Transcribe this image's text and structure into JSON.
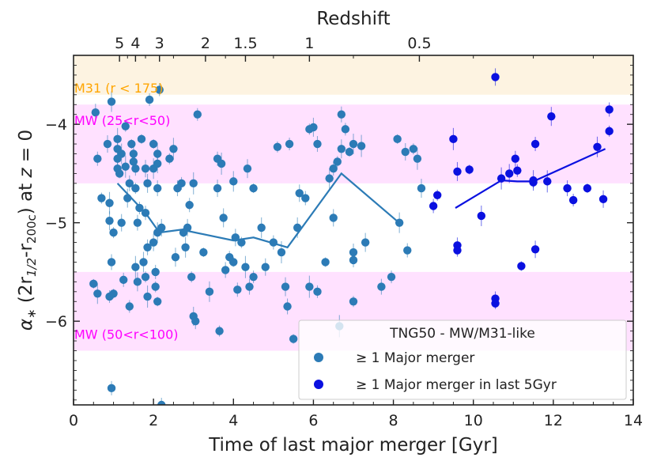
{
  "chart_data": {
    "type": "scatter",
    "xlabel": "Time of last major merger [Gyr]",
    "ylabel_parts": [
      "α",
      "∗",
      " (2r",
      "1/2",
      "-r",
      "200c",
      ") at ",
      "z",
      " = 0"
    ],
    "top_axis_label": "Redshift",
    "xlim": [
      0,
      14
    ],
    "ylim": [
      -6.85,
      -3.3
    ],
    "x_ticks": [
      0,
      2,
      4,
      6,
      8,
      10,
      12,
      14
    ],
    "x_tick_labels": [
      "0",
      "2",
      "4",
      "6",
      "8",
      "10",
      "12",
      "14"
    ],
    "y_ticks": [
      -4,
      -5,
      -6
    ],
    "y_tick_labels": [
      "−4",
      "−5",
      "−6"
    ],
    "top_ticks": [
      {
        "time": 1.15,
        "label": "5"
      },
      {
        "time": 1.55,
        "label": "4"
      },
      {
        "time": 2.15,
        "label": "3"
      },
      {
        "time": 3.3,
        "label": "2"
      },
      {
        "time": 4.3,
        "label": "1.5"
      },
      {
        "time": 5.9,
        "label": "1"
      },
      {
        "time": 8.65,
        "label": "0.5"
      }
    ],
    "top_minor_ticks": [
      1.35,
      1.8,
      2.5,
      3.8,
      5.0,
      7.0,
      10.0,
      11.5,
      13.0
    ],
    "bands": [
      {
        "name": "M31",
        "label": "M31 (r < 175)",
        "y_low": -3.7,
        "y_high": -3.3,
        "fill": "#fdf3e1",
        "label_color": "#ffa500",
        "label_y": -3.63
      },
      {
        "name": "MW_inner",
        "label": "MW (25<r<50)",
        "y_low": -4.6,
        "y_high": -3.8,
        "fill": "#ffe1ff",
        "label_color": "#ff00ff",
        "label_y": -3.96
      },
      {
        "name": "MW_outer",
        "label": "MW (50<r<100)",
        "y_low": -6.3,
        "y_high": -5.5,
        "fill": "#ffe1ff",
        "label_color": "#ff00ff",
        "label_y": -6.13
      }
    ],
    "legend": {
      "title": "TNG50 - MW/M31-like",
      "entries": [
        "≥ 1 Major merger",
        "≥ 1 Major merger in last 5Gyr"
      ]
    },
    "series": [
      {
        "name": "≥ 1 Major merger",
        "color": "#2c7bb6",
        "points": [
          [
            0.5,
            -5.62
          ],
          [
            0.6,
            -5.72
          ],
          [
            0.55,
            -3.88
          ],
          [
            0.6,
            -4.35
          ],
          [
            0.7,
            -4.75
          ],
          [
            0.9,
            -4.8
          ],
          [
            0.9,
            -4.98
          ],
          [
            0.95,
            -5.4
          ],
          [
            0.9,
            -5.75
          ],
          [
            1.0,
            -5.72
          ],
          [
            0.95,
            -3.77
          ],
          [
            0.85,
            -4.2
          ],
          [
            0.95,
            -6.68
          ],
          [
            1.0,
            -5.1
          ],
          [
            1.1,
            -4.15
          ],
          [
            1.1,
            -4.25
          ],
          [
            1.1,
            -4.35
          ],
          [
            1.1,
            -4.45
          ],
          [
            1.15,
            -4.5
          ],
          [
            1.2,
            -4.3
          ],
          [
            1.2,
            -5.0
          ],
          [
            1.25,
            -5.58
          ],
          [
            1.3,
            -4.02
          ],
          [
            1.3,
            -4.43
          ],
          [
            1.35,
            -4.75
          ],
          [
            1.4,
            -4.6
          ],
          [
            1.4,
            -5.85
          ],
          [
            1.45,
            -4.2
          ],
          [
            1.5,
            -4.3
          ],
          [
            1.5,
            -4.38
          ],
          [
            1.55,
            -4.45
          ],
          [
            1.55,
            -4.65
          ],
          [
            1.55,
            -5.45
          ],
          [
            1.6,
            -5.6
          ],
          [
            1.6,
            -5.0
          ],
          [
            1.65,
            -4.85
          ],
          [
            1.7,
            -4.15
          ],
          [
            1.75,
            -5.4
          ],
          [
            1.8,
            -4.45
          ],
          [
            1.8,
            -4.9
          ],
          [
            1.8,
            -5.55
          ],
          [
            1.85,
            -5.75
          ],
          [
            1.85,
            -4.6
          ],
          [
            1.85,
            -5.25
          ],
          [
            1.9,
            -3.75
          ],
          [
            2.0,
            -4.2
          ],
          [
            2.0,
            -4.45
          ],
          [
            2.0,
            -5.2
          ],
          [
            2.05,
            -5.5
          ],
          [
            2.05,
            -5.65
          ],
          [
            2.1,
            -4.3
          ],
          [
            2.1,
            -4.4
          ],
          [
            2.1,
            -4.65
          ],
          [
            2.15,
            -3.65
          ],
          [
            2.1,
            -5.8
          ],
          [
            2.1,
            -5.1
          ],
          [
            2.2,
            -5.05
          ],
          [
            2.2,
            -6.85
          ],
          [
            2.4,
            -4.35
          ],
          [
            2.5,
            -4.25
          ],
          [
            2.55,
            -5.35
          ],
          [
            2.6,
            -4.65
          ],
          [
            2.7,
            -4.6
          ],
          [
            2.75,
            -5.1
          ],
          [
            2.8,
            -5.25
          ],
          [
            2.85,
            -5.05
          ],
          [
            2.9,
            -4.82
          ],
          [
            2.95,
            -5.55
          ],
          [
            3.0,
            -4.6
          ],
          [
            3.0,
            -5.95
          ],
          [
            3.05,
            -6.0
          ],
          [
            3.1,
            -3.9
          ],
          [
            3.25,
            -5.3
          ],
          [
            3.4,
            -5.7
          ],
          [
            3.6,
            -4.65
          ],
          [
            3.6,
            -4.35
          ],
          [
            3.65,
            -6.1
          ],
          [
            3.7,
            -4.4
          ],
          [
            3.75,
            -4.95
          ],
          [
            3.8,
            -5.48
          ],
          [
            3.9,
            -5.35
          ],
          [
            4.0,
            -5.4
          ],
          [
            4.0,
            -4.58
          ],
          [
            4.05,
            -5.15
          ],
          [
            4.1,
            -5.68
          ],
          [
            4.2,
            -5.2
          ],
          [
            4.3,
            -5.45
          ],
          [
            4.35,
            -4.45
          ],
          [
            4.4,
            -5.65
          ],
          [
            4.5,
            -5.55
          ],
          [
            4.5,
            -4.65
          ],
          [
            4.7,
            -5.05
          ],
          [
            4.8,
            -5.45
          ],
          [
            5.0,
            -5.2
          ],
          [
            5.1,
            -4.23
          ],
          [
            5.2,
            -5.3
          ],
          [
            5.3,
            -5.65
          ],
          [
            5.35,
            -5.85
          ],
          [
            5.4,
            -4.2
          ],
          [
            5.5,
            -6.18
          ],
          [
            5.6,
            -5.05
          ],
          [
            5.65,
            -4.7
          ],
          [
            5.8,
            -4.75
          ],
          [
            5.9,
            -4.05
          ],
          [
            5.9,
            -5.65
          ],
          [
            6.0,
            -4.03
          ],
          [
            6.1,
            -4.2
          ],
          [
            6.1,
            -5.7
          ],
          [
            6.3,
            -5.4
          ],
          [
            6.4,
            -4.55
          ],
          [
            6.5,
            -4.95
          ],
          [
            6.5,
            -4.45
          ],
          [
            6.6,
            -4.38
          ],
          [
            6.65,
            -6.05
          ],
          [
            6.7,
            -4.25
          ],
          [
            6.7,
            -3.9
          ],
          [
            6.8,
            -4.05
          ],
          [
            6.9,
            -4.28
          ],
          [
            7.0,
            -4.2
          ],
          [
            7.0,
            -5.3
          ],
          [
            7.0,
            -5.38
          ],
          [
            7.0,
            -5.8
          ],
          [
            7.2,
            -4.22
          ],
          [
            7.3,
            -5.2
          ],
          [
            7.7,
            -5.65
          ],
          [
            7.95,
            -5.55
          ],
          [
            8.1,
            -4.15
          ],
          [
            8.15,
            -5.0
          ],
          [
            8.3,
            -4.28
          ],
          [
            8.35,
            -5.28
          ],
          [
            8.5,
            -4.25
          ],
          [
            8.6,
            -4.35
          ],
          [
            8.7,
            -4.65
          ]
        ],
        "trend": [
          [
            1.1,
            -4.6
          ],
          [
            1.8,
            -4.9
          ],
          [
            2.15,
            -5.1
          ],
          [
            2.7,
            -5.07
          ],
          [
            4.0,
            -5.18
          ],
          [
            4.5,
            -5.15
          ],
          [
            5.35,
            -5.25
          ],
          [
            6.7,
            -4.5
          ],
          [
            8.2,
            -5.02
          ]
        ]
      },
      {
        "name": "≥ 1 Major merger in last 5Gyr",
        "color": "#0a10e0",
        "points": [
          [
            9.0,
            -4.83
          ],
          [
            9.1,
            -4.72
          ],
          [
            9.5,
            -4.15
          ],
          [
            9.6,
            -4.48
          ],
          [
            9.6,
            -5.23
          ],
          [
            9.6,
            -5.28
          ],
          [
            9.9,
            -4.46
          ],
          [
            10.2,
            -4.93
          ],
          [
            10.55,
            -3.52
          ],
          [
            10.55,
            -5.77
          ],
          [
            10.55,
            -5.82
          ],
          [
            10.7,
            -4.55
          ],
          [
            10.9,
            -4.5
          ],
          [
            11.05,
            -4.35
          ],
          [
            11.1,
            -4.47
          ],
          [
            11.2,
            -5.44
          ],
          [
            11.5,
            -4.57
          ],
          [
            11.55,
            -5.27
          ],
          [
            11.55,
            -4.2
          ],
          [
            11.5,
            -4.59
          ],
          [
            11.85,
            -4.58
          ],
          [
            11.95,
            -3.92
          ],
          [
            12.35,
            -4.65
          ],
          [
            12.5,
            -4.77
          ],
          [
            12.85,
            -4.65
          ],
          [
            13.1,
            -4.23
          ],
          [
            13.25,
            -4.76
          ],
          [
            13.4,
            -3.85
          ],
          [
            13.4,
            -4.07
          ]
        ],
        "trend": [
          [
            9.55,
            -4.85
          ],
          [
            10.7,
            -4.57
          ],
          [
            11.1,
            -4.58
          ],
          [
            11.5,
            -4.58
          ],
          [
            13.3,
            -4.25
          ]
        ]
      }
    ]
  }
}
